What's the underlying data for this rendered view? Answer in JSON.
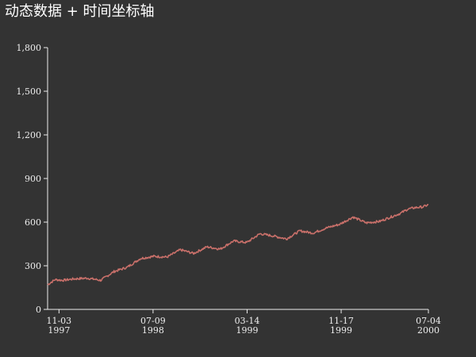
{
  "chart_data": {
    "type": "line",
    "title": "动态数据 + 时间坐标轴",
    "xlabel": "",
    "ylabel": "",
    "ylim": [
      0,
      1800
    ],
    "grid": false,
    "yticks": [
      {
        "value": 0,
        "label": "0"
      },
      {
        "value": 300,
        "label": "300"
      },
      {
        "value": 600,
        "label": "600"
      },
      {
        "value": 900,
        "label": "900"
      },
      {
        "value": 1200,
        "label": "1,200"
      },
      {
        "value": 1500,
        "label": "1,500"
      },
      {
        "value": 1800,
        "label": "1,800"
      }
    ],
    "xticks": [
      {
        "date": "1997-11-03",
        "label": "11-03",
        "sub": "1997"
      },
      {
        "date": "1998-07-09",
        "label": "07-09",
        "sub": "1998"
      },
      {
        "date": "1999-03-14",
        "label": "03-14",
        "sub": "1999"
      },
      {
        "date": "1999-11-17",
        "label": "11-17",
        "sub": "1999"
      },
      {
        "date": "2000-07-04",
        "label": "07-04",
        "sub": "2000"
      }
    ],
    "xlim": [
      "1997-10-04",
      "2000-07-04"
    ],
    "series": [
      {
        "color": "#c9706a",
        "points": [
          [
            "1997-10-04",
            170
          ],
          [
            "1997-10-24",
            205
          ],
          [
            "1997-11-13",
            200
          ],
          [
            "1997-12-13",
            210
          ],
          [
            "1998-01-17",
            215
          ],
          [
            "1998-02-21",
            200
          ],
          [
            "1998-03-28",
            260
          ],
          [
            "1998-05-02",
            290
          ],
          [
            "1998-06-06",
            350
          ],
          [
            "1998-07-11",
            365
          ],
          [
            "1998-08-15",
            360
          ],
          [
            "1998-09-19",
            410
          ],
          [
            "1998-10-24",
            385
          ],
          [
            "1998-11-28",
            430
          ],
          [
            "1999-01-02",
            415
          ],
          [
            "1999-02-06",
            470
          ],
          [
            "1999-03-13",
            460
          ],
          [
            "1999-04-17",
            520
          ],
          [
            "1999-05-22",
            505
          ],
          [
            "1999-06-26",
            485
          ],
          [
            "1999-07-31",
            540
          ],
          [
            "1999-09-04",
            525
          ],
          [
            "1999-10-09",
            560
          ],
          [
            "1999-11-13",
            585
          ],
          [
            "1999-12-18",
            635
          ],
          [
            "2000-01-22",
            595
          ],
          [
            "2000-02-26",
            605
          ],
          [
            "2000-04-01",
            640
          ],
          [
            "2000-04-21",
            660
          ],
          [
            "2000-05-11",
            690
          ],
          [
            "2000-05-31",
            700
          ],
          [
            "2000-06-20",
            705
          ],
          [
            "2000-07-04",
            720
          ]
        ]
      }
    ]
  }
}
